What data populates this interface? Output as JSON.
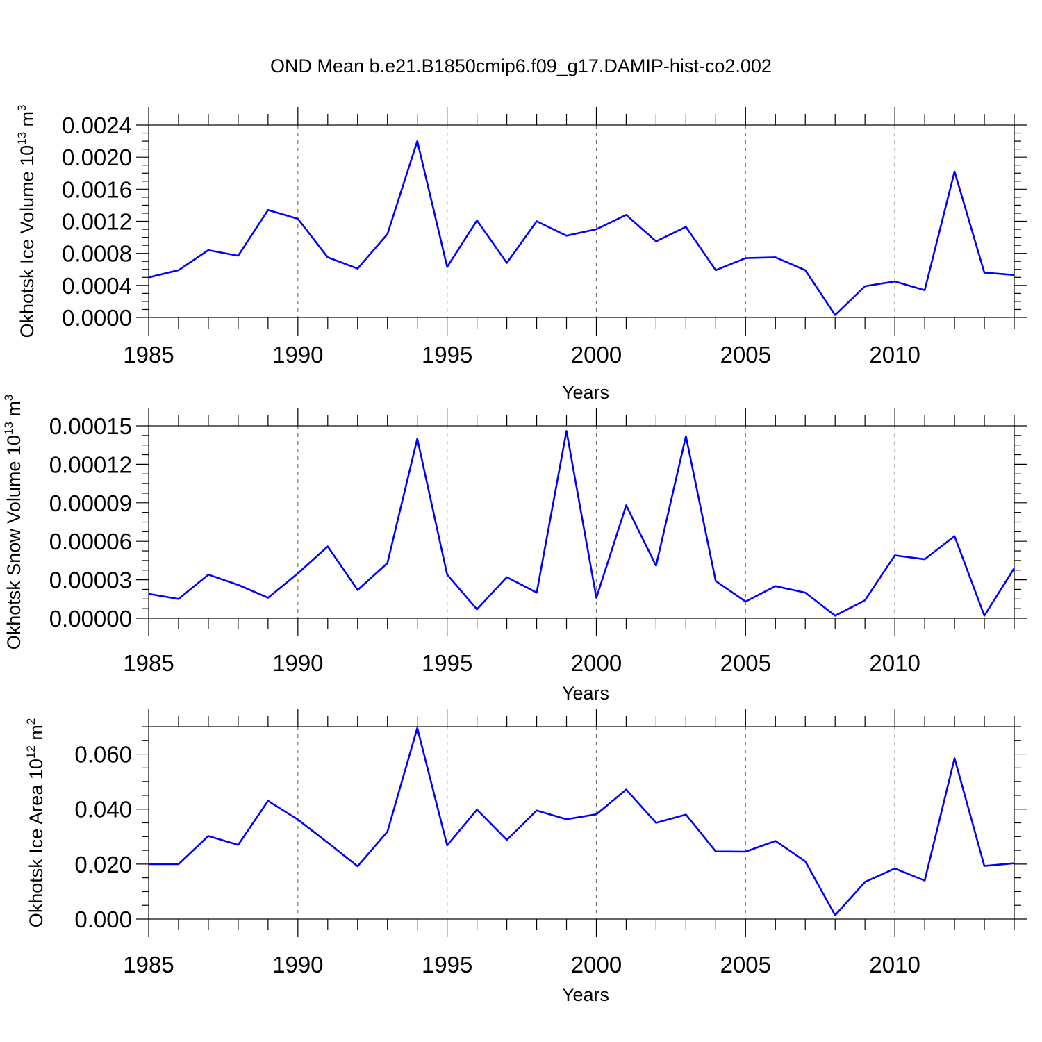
{
  "figure": {
    "title": "OND Mean b.e21.B1850cmip6.f09_g17.DAMIP-hist-co2.002",
    "line_color": "#0000ff"
  },
  "chart_data": [
    {
      "type": "line",
      "title": "",
      "xlabel": "Years",
      "ylabel": {
        "main": "Okhotsk Ice Volume 10",
        "exp": "13",
        "unit": " m",
        "unit_exp": "3"
      },
      "xlim": [
        1985,
        2014
      ],
      "ylim": [
        0,
        0.0024
      ],
      "xticks": [
        "1985",
        "1990",
        "1995",
        "2000",
        "2005",
        "2010"
      ],
      "yticks": [
        "0.0000",
        "0.0004",
        "0.0008",
        "0.0012",
        "0.0016",
        "0.0020",
        "0.0024"
      ],
      "grid": "dashed vertical at major x ticks",
      "legend": "none",
      "series": [
        {
          "x": [
            1985,
            1986,
            1987,
            1988,
            1989,
            1990,
            1991,
            1992,
            1993,
            1994,
            1995,
            1996,
            1997,
            1998,
            1999,
            2000,
            2001,
            2002,
            2003,
            2004,
            2005,
            2006,
            2007,
            2008,
            2009,
            2010,
            2011,
            2012,
            2013,
            2014
          ],
          "values": [
            0.0005,
            0.00059,
            0.00084,
            0.00077,
            0.00134,
            0.00123,
            0.00075,
            0.00061,
            0.00104,
            0.0022,
            0.00063,
            0.00121,
            0.00068,
            0.0012,
            0.00102,
            0.0011,
            0.00128,
            0.00095,
            0.00113,
            0.00059,
            0.00074,
            0.00075,
            0.00059,
            3e-05,
            0.00039,
            0.00045,
            0.00034,
            0.00182,
            0.00056,
            0.00053
          ]
        }
      ]
    },
    {
      "type": "line",
      "title": "",
      "xlabel": "Years",
      "ylabel": {
        "main": "Okhotsk Snow Volume 10",
        "exp": "13",
        "unit": " m",
        "unit_exp": "3"
      },
      "xlim": [
        1985,
        2014
      ],
      "ylim": [
        0,
        0.00015
      ],
      "xticks": [
        "1985",
        "1990",
        "1995",
        "2000",
        "2005",
        "2010"
      ],
      "yticks": [
        "0.00000",
        "0.00003",
        "0.00006",
        "0.00009",
        "0.00012",
        "0.00015"
      ],
      "grid": "dashed vertical at major x ticks",
      "legend": "none",
      "series": [
        {
          "x": [
            1985,
            1986,
            1987,
            1988,
            1989,
            1990,
            1991,
            1992,
            1993,
            1994,
            1995,
            1996,
            1997,
            1998,
            1999,
            2000,
            2001,
            2002,
            2003,
            2004,
            2005,
            2006,
            2007,
            2008,
            2009,
            2010,
            2011,
            2012,
            2013,
            2014
          ],
          "values": [
            1.9e-05,
            1.5e-05,
            3.4e-05,
            2.6e-05,
            1.6e-05,
            3.5e-05,
            5.6e-05,
            2.2e-05,
            4.3e-05,
            0.00014,
            3.4e-05,
            7e-06,
            3.2e-05,
            2e-05,
            0.000146,
            1.6e-05,
            8.8e-05,
            4.1e-05,
            0.000142,
            2.9e-05,
            1.3e-05,
            2.5e-05,
            2e-05,
            2e-06,
            1.4e-05,
            4.9e-05,
            4.6e-05,
            6.4e-05,
            2e-06,
            3.9e-05
          ]
        }
      ]
    },
    {
      "type": "line",
      "title": "",
      "xlabel": "Years",
      "ylabel": {
        "main": "Okhotsk Ice Area 10",
        "exp": "12",
        "unit": " m",
        "unit_exp": "2"
      },
      "xlim": [
        1985,
        2014
      ],
      "ylim": [
        0,
        0.07
      ],
      "xticks": [
        "1985",
        "1990",
        "1995",
        "2000",
        "2005",
        "2010"
      ],
      "yticks": [
        "0.000",
        "0.020",
        "0.040",
        "0.060"
      ],
      "grid": "dashed vertical at major x ticks",
      "legend": "none",
      "series": [
        {
          "x": [
            1985,
            1986,
            1987,
            1988,
            1989,
            1990,
            1991,
            1992,
            1993,
            1994,
            1995,
            1996,
            1997,
            1998,
            1999,
            2000,
            2001,
            2002,
            2003,
            2004,
            2005,
            2006,
            2007,
            2008,
            2009,
            2010,
            2011,
            2012,
            2013,
            2014
          ],
          "values": [
            0.02,
            0.02,
            0.0302,
            0.027,
            0.043,
            0.0362,
            0.0278,
            0.0192,
            0.0318,
            0.0695,
            0.0268,
            0.0398,
            0.0288,
            0.0395,
            0.0363,
            0.0381,
            0.0471,
            0.035,
            0.038,
            0.0246,
            0.0245,
            0.0284,
            0.021,
            0.0014,
            0.0135,
            0.0184,
            0.014,
            0.0585,
            0.0193,
            0.0203
          ]
        }
      ]
    }
  ]
}
